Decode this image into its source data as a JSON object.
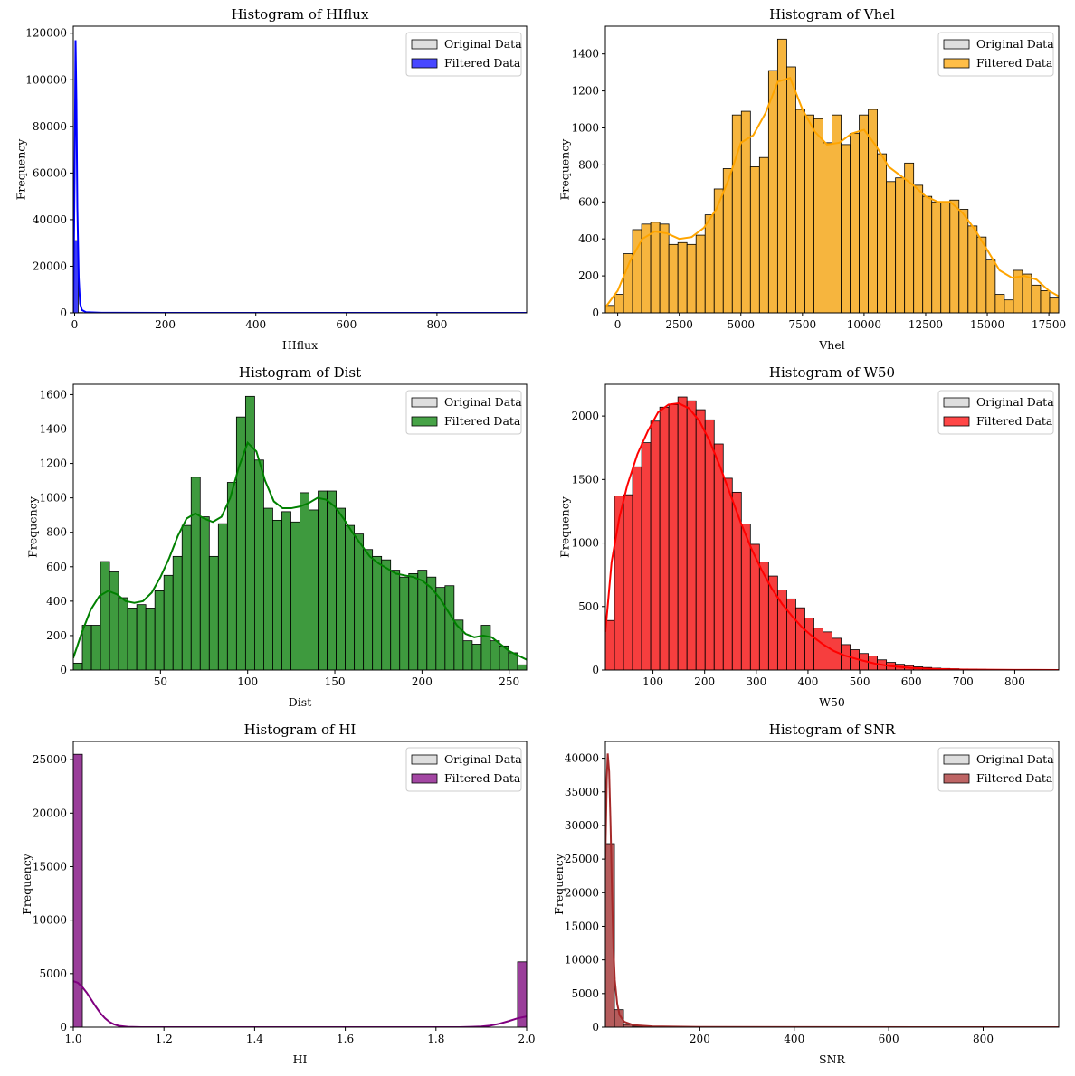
{
  "figure": {
    "legend_labels": [
      "Original Data",
      "Filtered Data"
    ],
    "original_color": "#bdbdbd"
  },
  "chart_data": [
    {
      "type": "bar",
      "title": "Histogram of HIflux",
      "xlabel": "HIflux",
      "ylabel": "Frequency",
      "xlim": [
        -3,
        998
      ],
      "ylim": [
        0,
        123000
      ],
      "xticks": [
        0,
        200,
        400,
        600,
        800
      ],
      "yticks": [
        0,
        20000,
        40000,
        60000,
        80000,
        100000,
        120000
      ],
      "color": "#0000ff",
      "legend": "top-right",
      "bins": [
        {
          "x0": -3,
          "x1": 8,
          "count": 31000
        },
        {
          "x0": 8,
          "x1": 19,
          "count": 120
        }
      ],
      "kde": [
        [
          -3,
          0
        ],
        [
          0,
          60000
        ],
        [
          2,
          117000
        ],
        [
          4,
          90000
        ],
        [
          6,
          45000
        ],
        [
          9,
          15000
        ],
        [
          12,
          4000
        ],
        [
          16,
          1200
        ],
        [
          25,
          300
        ],
        [
          60,
          50
        ],
        [
          200,
          5
        ],
        [
          998,
          0
        ]
      ]
    },
    {
      "type": "bar",
      "title": "Histogram of Vhel",
      "xlabel": "Vhel",
      "ylabel": "Frequency",
      "xlim": [
        -500,
        17900
      ],
      "ylim": [
        0,
        1550
      ],
      "xticks": [
        0,
        2500,
        5000,
        7500,
        10000,
        12500,
        15000,
        17500
      ],
      "yticks": [
        0,
        200,
        400,
        600,
        800,
        1000,
        1200,
        1400
      ],
      "color": "#ffa500",
      "legend": "top-right",
      "bin_start": -500,
      "bin_width": 368,
      "counts": [
        40,
        100,
        320,
        450,
        480,
        490,
        480,
        370,
        380,
        370,
        420,
        530,
        670,
        780,
        1070,
        1090,
        790,
        840,
        1310,
        1480,
        1330,
        1100,
        1070,
        1050,
        920,
        1070,
        910,
        970,
        1070,
        1100,
        860,
        710,
        730,
        810,
        690,
        630,
        600,
        600,
        610,
        560,
        470,
        410,
        290,
        100,
        70,
        230,
        210,
        150,
        120,
        80
      ],
      "kde": [
        [
          -500,
          30
        ],
        [
          0,
          120
        ],
        [
          500,
          280
        ],
        [
          1000,
          400
        ],
        [
          1500,
          440
        ],
        [
          2000,
          430
        ],
        [
          2500,
          400
        ],
        [
          3000,
          410
        ],
        [
          3500,
          460
        ],
        [
          4000,
          560
        ],
        [
          4500,
          720
        ],
        [
          5000,
          920
        ],
        [
          5500,
          960
        ],
        [
          6000,
          1080
        ],
        [
          6500,
          1250
        ],
        [
          7000,
          1270
        ],
        [
          7500,
          1100
        ],
        [
          8000,
          980
        ],
        [
          8500,
          910
        ],
        [
          9000,
          920
        ],
        [
          9500,
          970
        ],
        [
          10000,
          990
        ],
        [
          10500,
          900
        ],
        [
          11000,
          790
        ],
        [
          11500,
          740
        ],
        [
          12000,
          690
        ],
        [
          12500,
          630
        ],
        [
          13000,
          600
        ],
        [
          13500,
          600
        ],
        [
          14000,
          540
        ],
        [
          14500,
          450
        ],
        [
          15000,
          340
        ],
        [
          15500,
          230
        ],
        [
          16000,
          190
        ],
        [
          16500,
          200
        ],
        [
          17000,
          180
        ],
        [
          17500,
          120
        ],
        [
          17900,
          90
        ]
      ]
    },
    {
      "type": "bar",
      "title": "Histogram of Dist",
      "xlabel": "Dist",
      "ylabel": "Frequency",
      "xlim": [
        0,
        260
      ],
      "ylim": [
        0,
        1660
      ],
      "xticks": [
        50,
        100,
        150,
        200,
        250
      ],
      "yticks": [
        0,
        200,
        400,
        600,
        800,
        1000,
        1200,
        1400,
        1600
      ],
      "color": "#008000",
      "legend": "top-right",
      "bin_start": 0,
      "bin_width": 5.2,
      "counts": [
        40,
        260,
        260,
        630,
        570,
        420,
        360,
        380,
        360,
        460,
        550,
        660,
        840,
        1120,
        890,
        660,
        850,
        1090,
        1470,
        1590,
        1220,
        940,
        870,
        920,
        860,
        1030,
        930,
        1040,
        1040,
        940,
        840,
        790,
        700,
        660,
        640,
        580,
        540,
        560,
        580,
        540,
        480,
        490,
        290,
        170,
        150,
        260,
        170,
        140,
        100,
        30
      ],
      "kde": [
        [
          0,
          70
        ],
        [
          5,
          220
        ],
        [
          10,
          350
        ],
        [
          15,
          430
        ],
        [
          20,
          460
        ],
        [
          25,
          440
        ],
        [
          30,
          400
        ],
        [
          35,
          390
        ],
        [
          40,
          400
        ],
        [
          45,
          450
        ],
        [
          50,
          540
        ],
        [
          55,
          650
        ],
        [
          60,
          780
        ],
        [
          65,
          880
        ],
        [
          70,
          910
        ],
        [
          75,
          880
        ],
        [
          80,
          860
        ],
        [
          85,
          890
        ],
        [
          90,
          1000
        ],
        [
          95,
          1180
        ],
        [
          100,
          1320
        ],
        [
          105,
          1270
        ],
        [
          110,
          1100
        ],
        [
          115,
          980
        ],
        [
          120,
          940
        ],
        [
          125,
          940
        ],
        [
          130,
          950
        ],
        [
          135,
          970
        ],
        [
          140,
          1000
        ],
        [
          145,
          990
        ],
        [
          150,
          950
        ],
        [
          155,
          880
        ],
        [
          160,
          800
        ],
        [
          165,
          730
        ],
        [
          170,
          660
        ],
        [
          175,
          620
        ],
        [
          180,
          590
        ],
        [
          185,
          560
        ],
        [
          190,
          550
        ],
        [
          195,
          540
        ],
        [
          200,
          520
        ],
        [
          205,
          480
        ],
        [
          210,
          420
        ],
        [
          215,
          340
        ],
        [
          220,
          260
        ],
        [
          225,
          210
        ],
        [
          230,
          190
        ],
        [
          235,
          200
        ],
        [
          240,
          190
        ],
        [
          245,
          150
        ],
        [
          250,
          110
        ],
        [
          260,
          60
        ]
      ]
    },
    {
      "type": "bar",
      "title": "Histogram of W50",
      "xlabel": "W50",
      "ylabel": "Frequency",
      "xlim": [
        8,
        885
      ],
      "ylim": [
        0,
        2250
      ],
      "xticks": [
        100,
        200,
        300,
        400,
        500,
        600,
        700,
        800
      ],
      "yticks": [
        0,
        500,
        1000,
        1500,
        2000
      ],
      "color": "#ff0000",
      "legend": "top-right",
      "bin_start": 8,
      "bin_width": 17.54,
      "counts": [
        390,
        1370,
        1380,
        1600,
        1790,
        1960,
        2070,
        2090,
        2150,
        2120,
        2050,
        1970,
        1780,
        1510,
        1400,
        1150,
        990,
        850,
        740,
        630,
        560,
        490,
        410,
        330,
        300,
        250,
        200,
        160,
        130,
        110,
        80,
        60,
        45,
        35,
        25,
        20,
        15,
        12,
        10,
        8,
        6,
        5,
        4,
        3,
        3,
        2,
        2,
        1,
        1,
        1
      ],
      "kde": [
        [
          8,
          300
        ],
        [
          20,
          850
        ],
        [
          35,
          1200
        ],
        [
          50,
          1450
        ],
        [
          70,
          1700
        ],
        [
          90,
          1880
        ],
        [
          110,
          2030
        ],
        [
          130,
          2090
        ],
        [
          150,
          2100
        ],
        [
          170,
          2060
        ],
        [
          190,
          1960
        ],
        [
          210,
          1800
        ],
        [
          230,
          1600
        ],
        [
          250,
          1380
        ],
        [
          270,
          1160
        ],
        [
          290,
          960
        ],
        [
          310,
          790
        ],
        [
          330,
          640
        ],
        [
          350,
          520
        ],
        [
          370,
          420
        ],
        [
          390,
          330
        ],
        [
          410,
          260
        ],
        [
          430,
          200
        ],
        [
          450,
          150
        ],
        [
          470,
          115
        ],
        [
          500,
          80
        ],
        [
          530,
          50
        ],
        [
          560,
          30
        ],
        [
          600,
          16
        ],
        [
          650,
          8
        ],
        [
          700,
          4
        ],
        [
          800,
          1
        ],
        [
          885,
          0
        ]
      ]
    },
    {
      "type": "bar",
      "title": "Histogram of HI",
      "xlabel": "HI",
      "ylabel": "Frequency",
      "xlim": [
        1.0,
        2.0
      ],
      "ylim": [
        0,
        26700
      ],
      "xticks": [
        1.0,
        1.2,
        1.4,
        1.6,
        1.8,
        2.0
      ],
      "xtick_labels": [
        "1.0",
        "1.2",
        "1.4",
        "1.6",
        "1.8",
        "2.0"
      ],
      "yticks": [
        0,
        5000,
        10000,
        15000,
        20000,
        25000
      ],
      "color": "#800080",
      "legend": "top-right",
      "bins": [
        {
          "x0": 1.0,
          "x1": 1.02,
          "count": 25500
        },
        {
          "x0": 1.98,
          "x1": 2.0,
          "count": 6100
        }
      ],
      "kde": [
        [
          1.0,
          4300
        ],
        [
          1.01,
          4150
        ],
        [
          1.02,
          3750
        ],
        [
          1.03,
          3200
        ],
        [
          1.04,
          2550
        ],
        [
          1.05,
          1900
        ],
        [
          1.06,
          1300
        ],
        [
          1.07,
          830
        ],
        [
          1.08,
          480
        ],
        [
          1.09,
          260
        ],
        [
          1.1,
          130
        ],
        [
          1.12,
          30
        ],
        [
          1.15,
          0
        ],
        [
          1.85,
          0
        ],
        [
          1.88,
          30
        ],
        [
          1.9,
          60
        ],
        [
          1.92,
          150
        ],
        [
          1.94,
          320
        ],
        [
          1.96,
          560
        ],
        [
          1.98,
          830
        ],
        [
          2.0,
          1000
        ]
      ]
    },
    {
      "type": "bar",
      "title": "Histogram of SNR",
      "xlabel": "SNR",
      "ylabel": "Frequency",
      "xlim": [
        0,
        960
      ],
      "ylim": [
        0,
        42500
      ],
      "xticks": [
        200,
        400,
        600,
        800
      ],
      "yticks": [
        0,
        5000,
        10000,
        15000,
        20000,
        25000,
        30000,
        35000,
        40000
      ],
      "color": "#a52a2a",
      "legend": "top-right",
      "bin_start": 0,
      "bin_width": 19.2,
      "counts": [
        27300,
        2600,
        400,
        150,
        80,
        50,
        30,
        20,
        15,
        10,
        8,
        6,
        5,
        4,
        3,
        3,
        2,
        2,
        2,
        1,
        1,
        1,
        1,
        1,
        1,
        1,
        1,
        1,
        1,
        1,
        1,
        1,
        1,
        1,
        1,
        1,
        1,
        1,
        1,
        1,
        1,
        1,
        1,
        1,
        1,
        1,
        1,
        1,
        1,
        1
      ],
      "kde": [
        [
          0,
          25000
        ],
        [
          3,
          37000
        ],
        [
          5,
          40700
        ],
        [
          8,
          38000
        ],
        [
          11,
          30000
        ],
        [
          14,
          20000
        ],
        [
          17,
          12000
        ],
        [
          20,
          7000
        ],
        [
          25,
          3500
        ],
        [
          30,
          1800
        ],
        [
          40,
          800
        ],
        [
          60,
          300
        ],
        [
          100,
          120
        ],
        [
          200,
          40
        ],
        [
          400,
          10
        ],
        [
          960,
          0
        ]
      ]
    }
  ]
}
